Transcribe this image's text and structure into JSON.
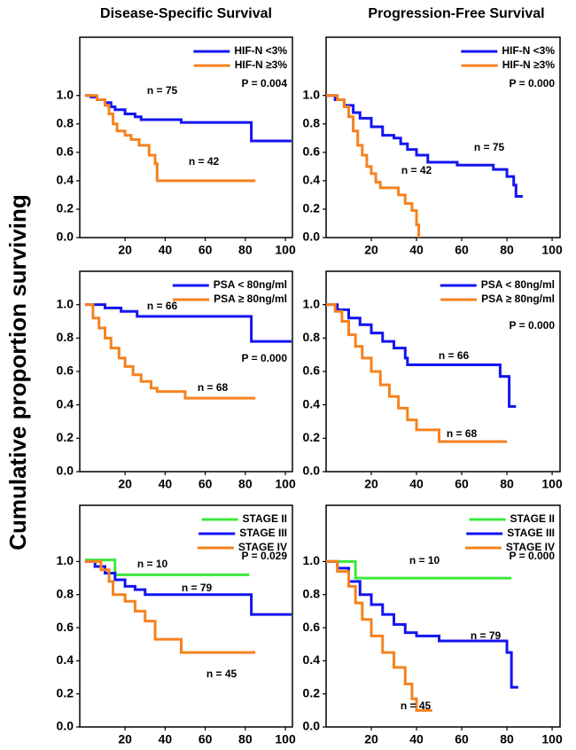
{
  "column_titles": [
    "Disease-Specific Survival",
    "Progression-Free Survival"
  ],
  "y_label": "Cumulative proportion surviving",
  "chart_data": [
    {
      "type": "line",
      "step": "post",
      "xlim": [
        -2.6,
        103.5
      ],
      "ylim": [
        0,
        1.41
      ],
      "xticks": [
        20,
        40,
        60,
        80,
        100
      ],
      "yticks": [
        {
          "value": 0,
          "label": "0.0"
        },
        0.2,
        0.4,
        0.6,
        0.8,
        {
          "value": 1,
          "label": "1.0"
        }
      ],
      "p_value": "P = 0.004",
      "annotations": [
        "n = 75",
        "n = 42"
      ],
      "series": [
        {
          "name": "HIF-N <3%",
          "color": "#1414f0",
          "x": [
            0,
            3,
            6,
            10,
            13,
            15,
            20,
            25,
            28,
            48,
            83,
            103
          ],
          "values": [
            1.0,
            0.99,
            0.97,
            0.95,
            0.92,
            0.9,
            0.87,
            0.85,
            0.83,
            0.81,
            0.68,
            0.68
          ]
        },
        {
          "name": "HIF-N ≥3%",
          "color": "#f5821f",
          "x": [
            0,
            6,
            10,
            12,
            14,
            16,
            20,
            23,
            27,
            32,
            35,
            36,
            85
          ],
          "values": [
            1.0,
            0.97,
            0.93,
            0.87,
            0.8,
            0.75,
            0.72,
            0.69,
            0.65,
            0.58,
            0.52,
            0.4,
            0.4
          ]
        }
      ]
    },
    {
      "type": "line",
      "step": "post",
      "xlim": [
        0,
        103.5
      ],
      "ylim": [
        0,
        1.41
      ],
      "xticks": [
        20,
        40,
        60,
        80,
        100
      ],
      "yticks": [
        {
          "value": 0,
          "label": "0.0"
        },
        0.2,
        0.4,
        0.6,
        0.8,
        {
          "value": 1,
          "label": "1.0"
        }
      ],
      "p_value": "P = 0.000",
      "annotations": [
        "n = 75",
        "n = 42"
      ],
      "series": [
        {
          "name": "HIF-N <3%",
          "color": "#1414f0",
          "x": [
            0,
            4,
            8,
            12,
            15,
            20,
            25,
            30,
            33,
            36,
            40,
            45,
            55,
            58,
            74,
            80,
            83,
            84,
            87
          ],
          "values": [
            1.0,
            0.97,
            0.93,
            0.88,
            0.84,
            0.78,
            0.72,
            0.7,
            0.66,
            0.62,
            0.58,
            0.53,
            0.53,
            0.51,
            0.48,
            0.43,
            0.37,
            0.29,
            0.29
          ]
        },
        {
          "name": "HIF-N ≥3%",
          "color": "#f5821f",
          "x": [
            0,
            5,
            8,
            10,
            12,
            14,
            16,
            18,
            20,
            22,
            24,
            32,
            35,
            38,
            40,
            41
          ],
          "values": [
            1.0,
            0.97,
            0.92,
            0.85,
            0.75,
            0.65,
            0.58,
            0.5,
            0.45,
            0.39,
            0.35,
            0.3,
            0.24,
            0.19,
            0.09,
            0
          ]
        }
      ]
    },
    {
      "type": "line",
      "step": "post",
      "xlim": [
        -2.6,
        103.5
      ],
      "ylim": [
        0,
        1.2
      ],
      "xticks": [
        20,
        40,
        60,
        80,
        100
      ],
      "yticks": [
        {
          "value": 0,
          "label": "0.0"
        },
        0.2,
        0.4,
        0.6,
        0.8,
        {
          "value": 1,
          "label": "1.0"
        }
      ],
      "p_value": "P = 0.000",
      "annotations": [
        "n = 66",
        "n = 68"
      ],
      "series": [
        {
          "name": "PSA < 80ng/ml",
          "color": "#1414f0",
          "x": [
            0,
            10,
            18,
            26,
            83,
            103
          ],
          "values": [
            1.0,
            0.98,
            0.96,
            0.93,
            0.78,
            0.78
          ]
        },
        {
          "name": "PSA ≥ 80ng/ml",
          "color": "#f5821f",
          "x": [
            0,
            4,
            7,
            10,
            13,
            17,
            20,
            24,
            28,
            33,
            36,
            50,
            85
          ],
          "values": [
            1.0,
            0.92,
            0.86,
            0.8,
            0.74,
            0.68,
            0.63,
            0.58,
            0.54,
            0.5,
            0.48,
            0.44,
            0.44
          ]
        }
      ]
    },
    {
      "type": "line",
      "step": "post",
      "xlim": [
        0,
        103.5
      ],
      "ylim": [
        0,
        1.2
      ],
      "xticks": [
        20,
        40,
        60,
        80,
        100
      ],
      "yticks": [
        {
          "value": 0,
          "label": "0.0"
        },
        0.2,
        0.4,
        0.6,
        0.8,
        {
          "value": 1,
          "label": "1.0"
        }
      ],
      "p_value": "P = 0.000",
      "annotations": [
        "n = 66",
        "n = 68"
      ],
      "series": [
        {
          "name": "PSA < 80ng/ml",
          "color": "#1414f0",
          "x": [
            0,
            5,
            10,
            15,
            20,
            25,
            30,
            35,
            36,
            77,
            81,
            84
          ],
          "values": [
            1.0,
            0.97,
            0.92,
            0.88,
            0.83,
            0.78,
            0.74,
            0.68,
            0.64,
            0.57,
            0.39,
            0.39
          ]
        },
        {
          "name": "PSA ≥ 80ng/ml",
          "color": "#f5821f",
          "x": [
            0,
            4,
            7,
            10,
            13,
            16,
            20,
            24,
            28,
            32,
            36,
            40,
            50,
            80
          ],
          "values": [
            1.0,
            0.96,
            0.9,
            0.82,
            0.75,
            0.68,
            0.6,
            0.52,
            0.45,
            0.38,
            0.31,
            0.25,
            0.18,
            0.18
          ]
        }
      ]
    },
    {
      "type": "line",
      "step": "post",
      "xlim": [
        -2.6,
        103.5
      ],
      "ylim": [
        0,
        1.34
      ],
      "xticks": [
        20,
        40,
        60,
        80,
        100
      ],
      "yticks": [
        {
          "value": 0,
          "label": "0.0"
        },
        0.2,
        0.4,
        0.6,
        0.8,
        {
          "value": 1,
          "label": "1.0"
        }
      ],
      "p_value": "P = 0.029",
      "annotations": [
        "n = 10",
        "n = 79",
        "n = 45"
      ],
      "series": [
        {
          "name": "STAGE II",
          "color": "#3ce83c",
          "x": [
            0,
            15,
            82
          ],
          "values": [
            1.01,
            0.92,
            0.92
          ]
        },
        {
          "name": "STAGE III",
          "color": "#1414f0",
          "x": [
            0,
            5,
            10,
            15,
            20,
            25,
            30,
            50,
            83,
            103
          ],
          "values": [
            1.0,
            0.97,
            0.93,
            0.89,
            0.85,
            0.83,
            0.8,
            0.8,
            0.68,
            0.68
          ]
        },
        {
          "name": "STAGE IV",
          "color": "#f5821f",
          "x": [
            0,
            8,
            12,
            14,
            20,
            25,
            30,
            35,
            48,
            85
          ],
          "values": [
            1.0,
            0.95,
            0.88,
            0.8,
            0.76,
            0.7,
            0.64,
            0.53,
            0.45,
            0.45
          ]
        }
      ]
    },
    {
      "type": "line",
      "step": "post",
      "xlim": [
        0,
        103.5
      ],
      "ylim": [
        0,
        1.34
      ],
      "xticks": [
        20,
        40,
        60,
        80,
        100
      ],
      "yticks": [
        {
          "value": 0,
          "label": "0.0"
        },
        0.2,
        0.4,
        0.6,
        0.8,
        {
          "value": 1,
          "label": "1.0"
        }
      ],
      "p_value": "P = 0.000",
      "annotations": [
        "n = 10",
        "n = 79",
        "n = 45"
      ],
      "series": [
        {
          "name": "STAGE II",
          "color": "#3ce83c",
          "x": [
            0,
            13,
            82
          ],
          "values": [
            1.0,
            0.9,
            0.9
          ]
        },
        {
          "name": "STAGE III",
          "color": "#1414f0",
          "x": [
            0,
            5,
            10,
            15,
            20,
            25,
            30,
            35,
            40,
            50,
            80,
            82,
            85
          ],
          "values": [
            1.0,
            0.96,
            0.88,
            0.8,
            0.74,
            0.68,
            0.62,
            0.57,
            0.55,
            0.52,
            0.45,
            0.24,
            0.24
          ]
        },
        {
          "name": "STAGE IV",
          "color": "#f5821f",
          "x": [
            0,
            5,
            10,
            13,
            16,
            20,
            25,
            30,
            35,
            38,
            40,
            47
          ],
          "values": [
            1.0,
            0.94,
            0.85,
            0.75,
            0.65,
            0.55,
            0.45,
            0.36,
            0.26,
            0.17,
            0.1,
            0.1
          ]
        }
      ]
    }
  ]
}
